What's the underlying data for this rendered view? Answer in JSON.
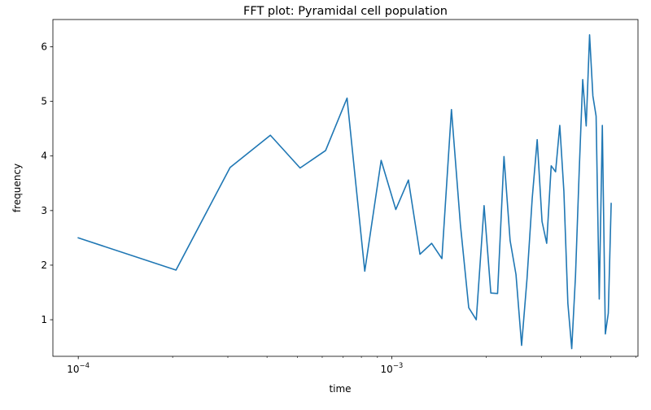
{
  "chart_data": {
    "type": "line",
    "title": "FFT plot: Pyramidal cell population",
    "xlabel": "time",
    "ylabel": "frequency",
    "xscale": "log",
    "xlim": [
      8.3e-05,
      0.0061
    ],
    "ylim": [
      0.33,
      6.5
    ],
    "grid": false,
    "x_major_ticks": [
      {
        "value": 0.0001,
        "base": "10",
        "exponent": "−4"
      },
      {
        "value": 0.001,
        "base": "10",
        "exponent": "−3"
      }
    ],
    "x_minor_ticks": [
      0.0002,
      0.0003,
      0.0004,
      0.0005,
      0.0006,
      0.0007,
      0.0008,
      0.0009,
      0.002,
      0.003,
      0.004,
      0.005,
      0.006
    ],
    "y_ticks": [
      1,
      2,
      3,
      4,
      5,
      6
    ],
    "y_tick_labels": [
      "1",
      "2",
      "3",
      "4",
      "5",
      "6"
    ],
    "series": [
      {
        "color": "#1f77b4",
        "x": [
          0.0001,
          0.000205,
          0.000305,
          0.00041,
          0.00051,
          0.000615,
          0.00072,
          0.00082,
          0.000925,
          0.00103,
          0.00113,
          0.00123,
          0.00134,
          0.001445,
          0.00155,
          0.001655,
          0.00176,
          0.00186,
          0.00197,
          0.00207,
          0.002175,
          0.00228,
          0.002385,
          0.00249,
          0.002595,
          0.0027,
          0.002805,
          0.00291,
          0.003015,
          0.00312,
          0.003225,
          0.00333,
          0.003435,
          0.00354,
          0.003645,
          0.00375,
          0.003855,
          0.00396,
          0.004065,
          0.00417,
          0.004275,
          0.00438,
          0.004485,
          0.00459,
          0.004695,
          0.0048,
          0.004905,
          0.00501
        ],
        "y": [
          2.5,
          1.91,
          3.79,
          4.38,
          3.78,
          4.1,
          5.06,
          1.89,
          3.92,
          3.02,
          3.56,
          2.2,
          2.4,
          2.12,
          4.85,
          2.75,
          1.22,
          1.0,
          3.09,
          1.49,
          1.48,
          3.99,
          2.45,
          1.83,
          0.53,
          1.75,
          3.22,
          4.3,
          2.8,
          2.4,
          3.82,
          3.71,
          4.56,
          3.35,
          1.3,
          0.47,
          1.8,
          3.7,
          5.4,
          4.55,
          6.22,
          5.1,
          4.73,
          1.38,
          4.56,
          0.74,
          1.12,
          3.13
        ]
      }
    ]
  }
}
